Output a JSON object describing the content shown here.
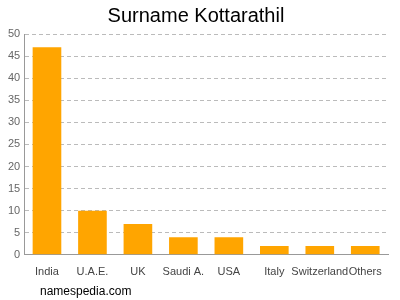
{
  "chart_data": {
    "type": "bar",
    "title": "Surname Kottarathil",
    "categories": [
      "India",
      "U.A.E.",
      "UK",
      "Saudi A.",
      "USA",
      "Italy",
      "Switzerland",
      "Others"
    ],
    "values": [
      47,
      10,
      7,
      4,
      4,
      2,
      2,
      2
    ],
    "color": "#ffa500",
    "ylim": [
      0,
      50
    ],
    "yticks": [
      0,
      5,
      10,
      15,
      20,
      25,
      30,
      35,
      40,
      45,
      50
    ],
    "grid": true,
    "annotations": [
      "namespedia.com"
    ]
  }
}
